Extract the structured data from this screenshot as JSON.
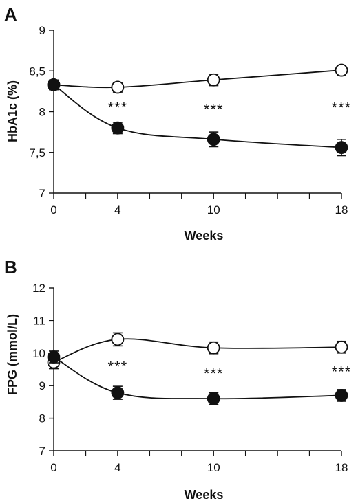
{
  "chart_data": [
    {
      "type": "line",
      "panel": "A",
      "xlabel": "Weeks",
      "ylabel": "HbA1c (%)",
      "x": [
        0,
        4,
        10,
        18
      ],
      "x_ticks": [
        "0",
        "4",
        "10",
        "18"
      ],
      "y_ticks": [
        "7",
        "7,5",
        "8",
        "8,5",
        "9"
      ],
      "ylim": [
        7,
        9
      ],
      "series": [
        {
          "marker": "open-circle",
          "values": [
            8.33,
            8.3,
            8.39,
            8.51
          ],
          "errors": [
            0.06,
            0.06,
            0.07,
            0.06
          ]
        },
        {
          "marker": "filled-circle",
          "values": [
            8.33,
            7.8,
            7.66,
            7.56
          ],
          "errors": [
            0.06,
            0.07,
            0.09,
            0.1
          ]
        }
      ],
      "annotations": [
        {
          "x": 4,
          "text": "***"
        },
        {
          "x": 10,
          "text": "***"
        },
        {
          "x": 18,
          "text": "***"
        }
      ]
    },
    {
      "type": "line",
      "panel": "B",
      "xlabel": "Weeks",
      "ylabel": "FPG (mmol/L)",
      "x": [
        0,
        4,
        10,
        18
      ],
      "x_ticks": [
        "0",
        "4",
        "10",
        "18"
      ],
      "y_ticks": [
        "7",
        "8",
        "9",
        "10",
        "11",
        "12"
      ],
      "ylim": [
        7,
        12
      ],
      "series": [
        {
          "marker": "open-circle",
          "values": [
            9.72,
            10.42,
            10.16,
            10.18
          ],
          "errors": [
            0.2,
            0.2,
            0.18,
            0.18
          ]
        },
        {
          "marker": "filled-circle",
          "values": [
            9.88,
            8.78,
            8.6,
            8.7
          ],
          "errors": [
            0.18,
            0.2,
            0.18,
            0.18
          ]
        }
      ],
      "annotations": [
        {
          "x": 4,
          "text": "***"
        },
        {
          "x": 10,
          "text": "***"
        },
        {
          "x": 18,
          "text": "***"
        }
      ]
    }
  ]
}
